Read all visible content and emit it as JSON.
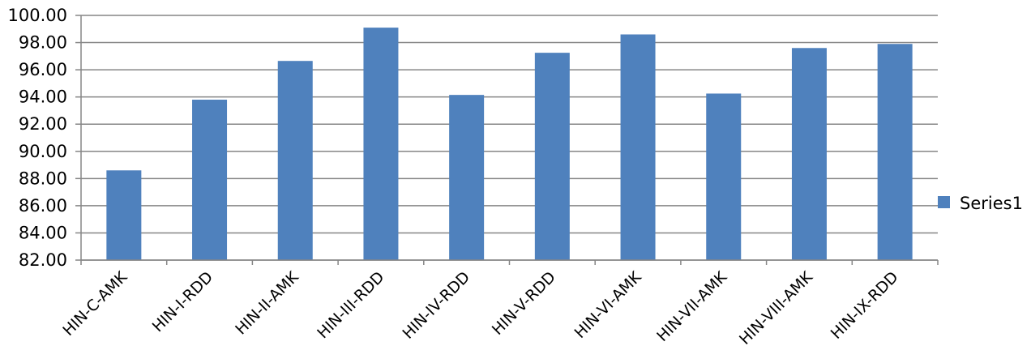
{
  "chart_data": {
    "type": "bar",
    "categories": [
      "HIN-C-AMK",
      "HIN-I-RDD",
      "HIN-II-AMK",
      "HIN-III-RDD",
      "HIN-IV-RDD",
      "HIN-V-RDD",
      "HIN-VI-AMK",
      "HIN-VII-AMK",
      "HIN-VIII-AMK",
      "HIN-IX-RDD"
    ],
    "series": [
      {
        "name": "Series1",
        "values": [
          88.6,
          93.8,
          96.65,
          99.1,
          94.15,
          97.25,
          98.6,
          94.25,
          97.6,
          97.9
        ]
      }
    ],
    "yticks": [
      "82.00",
      "84.00",
      "86.00",
      "88.00",
      "90.00",
      "92.00",
      "94.00",
      "96.00",
      "98.00",
      "100.00"
    ],
    "ylim": [
      82,
      100
    ],
    "title": "",
    "xlabel": "",
    "ylabel": "",
    "grid": true,
    "legend_position": "right",
    "colors": {
      "bar": "#4f81bd",
      "grid": "#868686",
      "axis": "#868686"
    }
  }
}
